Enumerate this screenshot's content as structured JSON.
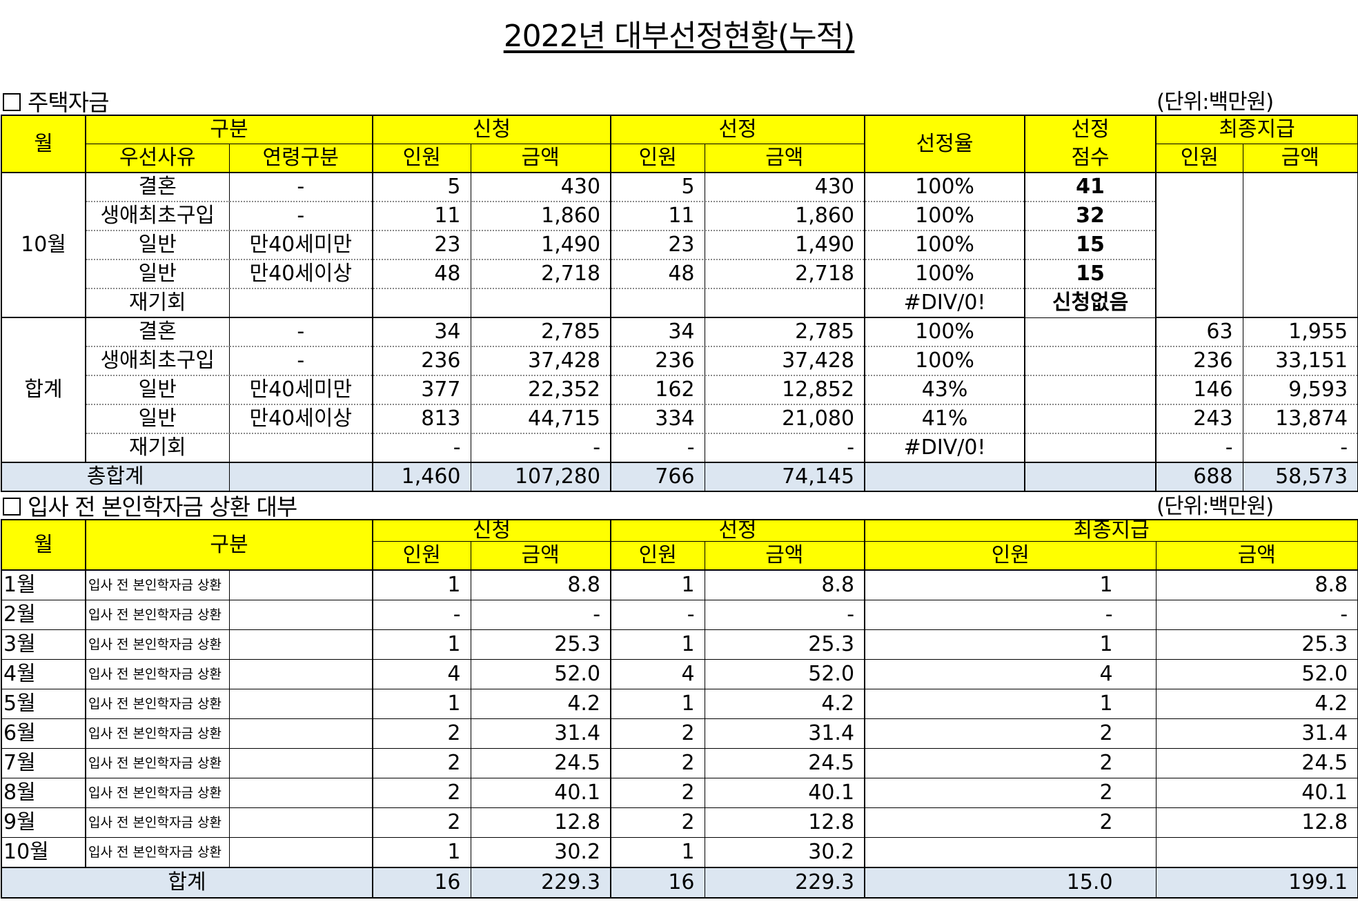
{
  "title": "2022년 대부선정현황(누적)",
  "s1": {
    "heading": "주택자금",
    "unit": "(단위:백만원)",
    "h": {
      "month": "월",
      "gubun": "구분",
      "apply": "신청",
      "select": "선정",
      "rate": "선정율",
      "score1": "선정",
      "final": "최종지급",
      "reason": "우선사유",
      "age": "연령구분",
      "people": "인원",
      "amount": "금액",
      "score2": "점수"
    },
    "oct_label": "10월",
    "oct": [
      {
        "reason": "결혼",
        "age": "-",
        "ap": "5",
        "aa": "430",
        "sp": "5",
        "sa": "430",
        "rate": "100%",
        "score": "41"
      },
      {
        "reason": "생애최초구입",
        "age": "-",
        "ap": "11",
        "aa": "1,860",
        "sp": "11",
        "sa": "1,860",
        "rate": "100%",
        "score": "32"
      },
      {
        "reason": "일반",
        "age": "만40세미만",
        "ap": "23",
        "aa": "1,490",
        "sp": "23",
        "sa": "1,490",
        "rate": "100%",
        "score": "15"
      },
      {
        "reason": "일반",
        "age": "만40세이상",
        "ap": "48",
        "aa": "2,718",
        "sp": "48",
        "sa": "2,718",
        "rate": "100%",
        "score": "15"
      },
      {
        "reason": "재기회",
        "age": "",
        "ap": "",
        "aa": "",
        "sp": "",
        "sa": "",
        "rate": "#DIV/0!",
        "score": "신청없음"
      }
    ],
    "sum_label": "합계",
    "sum": [
      {
        "reason": "결혼",
        "age": "-",
        "ap": "34",
        "aa": "2,785",
        "sp": "34",
        "sa": "2,785",
        "rate": "100%",
        "fp": "63",
        "fa": "1,955"
      },
      {
        "reason": "생애최초구입",
        "age": "-",
        "ap": "236",
        "aa": "37,428",
        "sp": "236",
        "sa": "37,428",
        "rate": "100%",
        "fp": "236",
        "fa": "33,151"
      },
      {
        "reason": "일반",
        "age": "만40세미만",
        "ap": "377",
        "aa": "22,352",
        "sp": "162",
        "sa": "12,852",
        "rate": "43%",
        "fp": "146",
        "fa": "9,593"
      },
      {
        "reason": "일반",
        "age": "만40세이상",
        "ap": "813",
        "aa": "44,715",
        "sp": "334",
        "sa": "21,080",
        "rate": "41%",
        "fp": "243",
        "fa": "13,874"
      },
      {
        "reason": "재기회",
        "age": "",
        "ap": "-",
        "aa": "-",
        "sp": "-",
        "sa": "-",
        "rate": "#DIV/0!",
        "fp": "-",
        "fa": "-"
      }
    ],
    "total": {
      "label": "총합계",
      "ap": "1,460",
      "aa": "107,280",
      "sp": "766",
      "sa": "74,145",
      "fp": "688",
      "fa": "58,573"
    }
  },
  "s2": {
    "heading": "입사 전 본인학자금 상환 대부",
    "unit": "(단위:백만원)",
    "h": {
      "month": "월",
      "gubun": "구분",
      "apply": "신청",
      "select": "선정",
      "final": "최종지급",
      "people": "인원",
      "amount": "금액"
    },
    "rows": [
      {
        "m": "1월",
        "g": "입사 전 본인학자금 상환",
        "ap": "1",
        "aa": "8.8",
        "sp": "1",
        "sa": "8.8",
        "fp": "1",
        "fa": "8.8"
      },
      {
        "m": "2월",
        "g": "입사 전 본인학자금 상환",
        "ap": "-",
        "aa": "-",
        "sp": "-",
        "sa": "-",
        "fp": "-",
        "fa": "-"
      },
      {
        "m": "3월",
        "g": "입사 전 본인학자금 상환",
        "ap": "1",
        "aa": "25.3",
        "sp": "1",
        "sa": "25.3",
        "fp": "1",
        "fa": "25.3"
      },
      {
        "m": "4월",
        "g": "입사 전 본인학자금 상환",
        "ap": "4",
        "aa": "52.0",
        "sp": "4",
        "sa": "52.0",
        "fp": "4",
        "fa": "52.0"
      },
      {
        "m": "5월",
        "g": "입사 전 본인학자금 상환",
        "ap": "1",
        "aa": "4.2",
        "sp": "1",
        "sa": "4.2",
        "fp": "1",
        "fa": "4.2"
      },
      {
        "m": "6월",
        "g": "입사 전 본인학자금 상환",
        "ap": "2",
        "aa": "31.4",
        "sp": "2",
        "sa": "31.4",
        "fp": "2",
        "fa": "31.4"
      },
      {
        "m": "7월",
        "g": "입사 전 본인학자금 상환",
        "ap": "2",
        "aa": "24.5",
        "sp": "2",
        "sa": "24.5",
        "fp": "2",
        "fa": "24.5"
      },
      {
        "m": "8월",
        "g": "입사 전 본인학자금 상환",
        "ap": "2",
        "aa": "40.1",
        "sp": "2",
        "sa": "40.1",
        "fp": "2",
        "fa": "40.1"
      },
      {
        "m": "9월",
        "g": "입사 전 본인학자금 상환",
        "ap": "2",
        "aa": "12.8",
        "sp": "2",
        "sa": "12.8",
        "fp": "2",
        "fa": "12.8"
      },
      {
        "m": "10월",
        "g": "입사 전 본인학자금 상환",
        "ap": "1",
        "aa": "30.2",
        "sp": "1",
        "sa": "30.2",
        "fp": "",
        "fa": ""
      }
    ],
    "total": {
      "label": "합계",
      "ap": "16",
      "aa": "229.3",
      "sp": "16",
      "sa": "229.3",
      "fp": "15.0",
      "fa": "199.1"
    }
  }
}
